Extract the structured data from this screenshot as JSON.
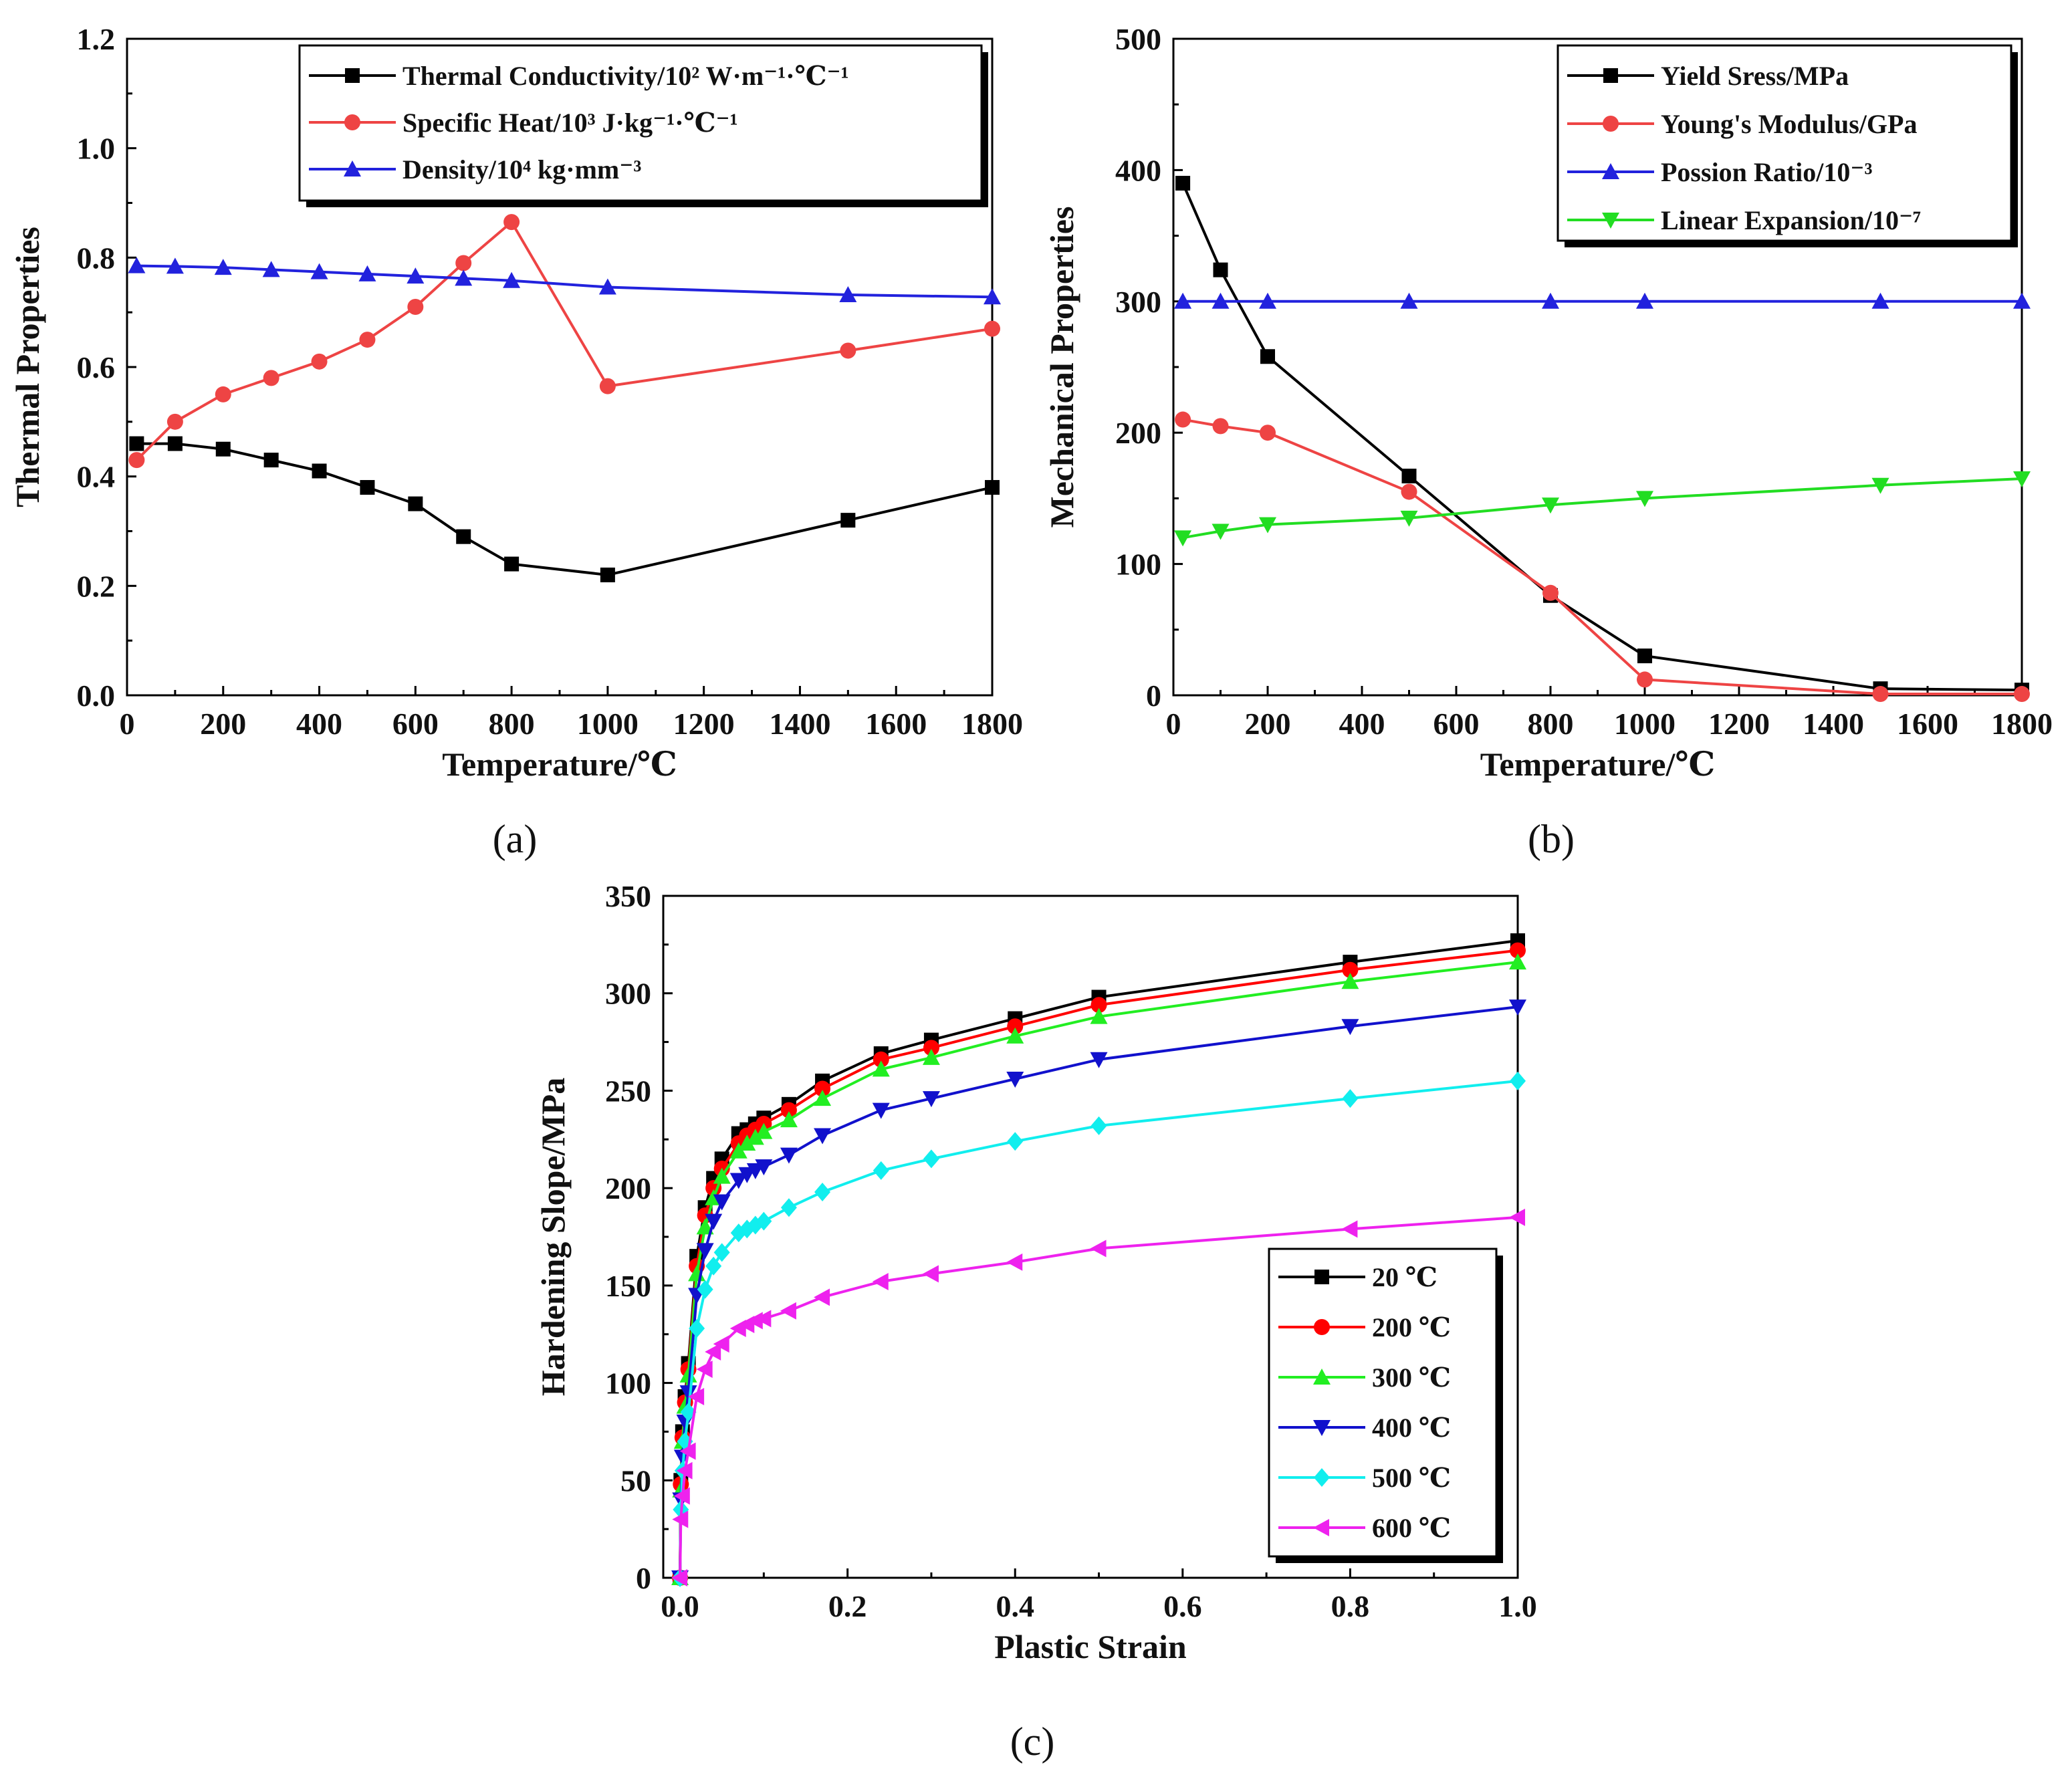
{
  "chart_data": [
    {
      "id": "a",
      "type": "line",
      "subfigure_label": "(a)",
      "xlabel": "Temperature/℃",
      "ylabel": "Thermal Properties",
      "xlim": [
        0,
        1800
      ],
      "ylim": [
        0,
        1.2
      ],
      "xticks": [
        0,
        200,
        400,
        600,
        800,
        1000,
        1200,
        1400,
        1600,
        1800
      ],
      "yticks": [
        0.0,
        0.2,
        0.4,
        0.6,
        0.8,
        1.0,
        1.2
      ],
      "ytick_labels": [
        "0.0",
        "0.2",
        "0.4",
        "0.6",
        "0.8",
        "1.0",
        "1.2"
      ],
      "legend_position": "top-right",
      "series": [
        {
          "name": "Thermal Conductivity/10² W·m⁻¹·℃⁻¹",
          "color": "#000000",
          "marker": "square",
          "x": [
            20,
            100,
            200,
            300,
            400,
            500,
            600,
            700,
            800,
            1000,
            1500,
            1800
          ],
          "y": [
            0.46,
            0.46,
            0.45,
            0.43,
            0.41,
            0.38,
            0.35,
            0.29,
            0.24,
            0.22,
            0.32,
            0.38
          ]
        },
        {
          "name": "Specific Heat/10³ J·kg⁻¹·℃⁻¹",
          "color": "#ee4444",
          "marker": "circle",
          "x": [
            20,
            100,
            200,
            300,
            400,
            500,
            600,
            700,
            800,
            1000,
            1500,
            1800
          ],
          "y": [
            0.43,
            0.5,
            0.55,
            0.58,
            0.61,
            0.65,
            0.71,
            0.79,
            0.865,
            0.565,
            0.63,
            0.67
          ]
        },
        {
          "name": "Density/10⁴ kg·mm⁻³",
          "color": "#2222dd",
          "marker": "triangle-up",
          "x": [
            20,
            100,
            200,
            300,
            400,
            500,
            600,
            700,
            800,
            1000,
            1500,
            1800
          ],
          "y": [
            0.785,
            0.784,
            0.782,
            0.778,
            0.774,
            0.77,
            0.766,
            0.762,
            0.758,
            0.746,
            0.732,
            0.728
          ]
        }
      ]
    },
    {
      "id": "b",
      "type": "line",
      "subfigure_label": "(b)",
      "xlabel": "Temperature/℃",
      "ylabel": "Mechanical Properties",
      "xlim": [
        0,
        1800
      ],
      "ylim": [
        0,
        500
      ],
      "xticks": [
        0,
        200,
        400,
        600,
        800,
        1000,
        1200,
        1400,
        1600,
        1800
      ],
      "yticks": [
        0,
        100,
        200,
        300,
        400,
        500
      ],
      "ytick_labels": [
        "0",
        "100",
        "200",
        "300",
        "400",
        "500"
      ],
      "legend_position": "top-right",
      "series": [
        {
          "name": "Yield Sress/MPa",
          "color": "#000000",
          "marker": "square",
          "x": [
            20,
            100,
            200,
            500,
            800,
            1000,
            1500,
            1800
          ],
          "y": [
            390,
            324,
            258,
            167,
            76,
            30,
            5,
            4
          ]
        },
        {
          "name": "Young's Modulus/GPa",
          "color": "#ee4444",
          "marker": "circle",
          "x": [
            20,
            100,
            200,
            500,
            800,
            1000,
            1500,
            1800
          ],
          "y": [
            210,
            205,
            200,
            155,
            78,
            12,
            1,
            1
          ]
        },
        {
          "name": "Possion Ratio/10⁻³",
          "color": "#2222dd",
          "marker": "triangle-up",
          "x": [
            20,
            100,
            200,
            500,
            800,
            1000,
            1500,
            1800
          ],
          "y": [
            300,
            300,
            300,
            300,
            300,
            300,
            300,
            300
          ]
        },
        {
          "name": "Linear Expansion/10⁻⁷",
          "color": "#22dd22",
          "marker": "triangle-down",
          "x": [
            20,
            100,
            200,
            500,
            800,
            1000,
            1500,
            1800
          ],
          "y": [
            120,
            125,
            130,
            135,
            145,
            150,
            160,
            165
          ]
        }
      ]
    },
    {
      "id": "c",
      "type": "line",
      "subfigure_label": "(c)",
      "xlabel": "Plastic Strain",
      "ylabel": "Hardening Slope/MPa",
      "xlim": [
        -0.02,
        1.0
      ],
      "ylim": [
        0,
        350
      ],
      "xticks": [
        0.0,
        0.2,
        0.4,
        0.6,
        0.8,
        1.0
      ],
      "xtick_labels": [
        "0.0",
        "0.2",
        "0.4",
        "0.6",
        "0.8",
        "1.0"
      ],
      "yticks": [
        0,
        50,
        100,
        150,
        200,
        250,
        300,
        350
      ],
      "ytick_labels": [
        "0",
        "50",
        "100",
        "150",
        "200",
        "250",
        "300",
        "350"
      ],
      "legend_position": "bottom-right",
      "x": [
        0.0,
        0.001,
        0.003,
        0.006,
        0.01,
        0.02,
        0.03,
        0.04,
        0.05,
        0.07,
        0.08,
        0.09,
        0.1,
        0.13,
        0.17,
        0.24,
        0.3,
        0.4,
        0.5,
        0.8,
        1.0
      ],
      "series": [
        {
          "name": "20 ℃",
          "color": "#000000",
          "marker": "square",
          "y": [
            0,
            50,
            75,
            93,
            110,
            165,
            190,
            205,
            215,
            228,
            230,
            233,
            236,
            243,
            255,
            269,
            276,
            287,
            298,
            316,
            327
          ]
        },
        {
          "name": "200 ℃",
          "color": "#ff0000",
          "marker": "circle",
          "y": [
            0,
            48,
            72,
            90,
            107,
            160,
            186,
            200,
            210,
            223,
            227,
            230,
            233,
            240,
            251,
            266,
            272,
            283,
            294,
            312,
            322
          ]
        },
        {
          "name": "300 ℃",
          "color": "#22ee22",
          "marker": "triangle-up",
          "y": [
            0,
            45,
            70,
            88,
            104,
            156,
            180,
            195,
            206,
            219,
            223,
            226,
            229,
            235,
            246,
            261,
            267,
            278,
            288,
            306,
            316
          ]
        },
        {
          "name": "400 ℃",
          "color": "#1111cc",
          "marker": "triangle-down",
          "y": [
            0,
            40,
            62,
            80,
            95,
            145,
            168,
            183,
            193,
            204,
            207,
            209,
            211,
            217,
            227,
            240,
            246,
            256,
            266,
            283,
            293
          ]
        },
        {
          "name": "500 ℃",
          "color": "#11eeee",
          "marker": "diamond",
          "y": [
            0,
            35,
            55,
            70,
            85,
            128,
            148,
            160,
            167,
            177,
            179,
            181,
            183,
            190,
            198,
            209,
            215,
            224,
            232,
            246,
            255
          ]
        },
        {
          "name": "600 ℃",
          "color": "#ee22ee",
          "marker": "triangle-left",
          "y": [
            0,
            30,
            42,
            55,
            65,
            93,
            107,
            116,
            120,
            128,
            130,
            132,
            133,
            137,
            144,
            152,
            156,
            162,
            169,
            179,
            185
          ]
        }
      ]
    }
  ]
}
